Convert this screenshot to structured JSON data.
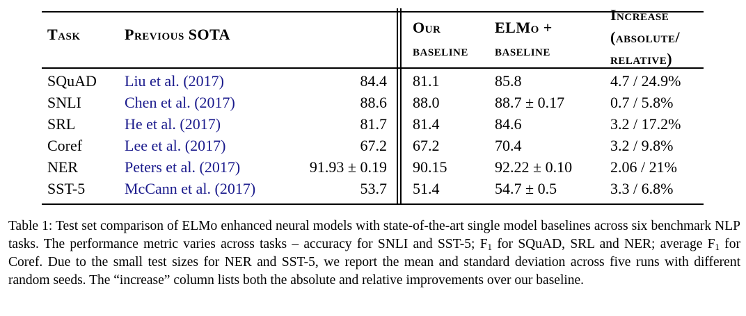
{
  "table": {
    "headers": {
      "task": "Task",
      "previous_sota": "Previous SOTA",
      "our_baseline": [
        "Our",
        "baseline"
      ],
      "elmo_baseline": [
        "ELMo +",
        "baseline"
      ],
      "increase": [
        "Increase",
        "(absolute/",
        "relative)"
      ]
    },
    "rows": [
      {
        "task": "SQuAD",
        "author": "Liu et al.",
        "year": "2017",
        "sota": "84.4",
        "baseline": "81.1",
        "elmo": "85.8",
        "increase": "4.7 / 24.9%"
      },
      {
        "task": "SNLI",
        "author": "Chen et al.",
        "year": "2017",
        "sota": "88.6",
        "baseline": "88.0",
        "elmo": "88.7 ± 0.17",
        "increase": "0.7 / 5.8%"
      },
      {
        "task": "SRL",
        "author": "He et al.",
        "year": "2017",
        "sota": "81.7",
        "baseline": "81.4",
        "elmo": "84.6",
        "increase": "3.2 / 17.2%"
      },
      {
        "task": "Coref",
        "author": "Lee et al.",
        "year": "2017",
        "sota": "67.2",
        "baseline": "67.2",
        "elmo": "70.4",
        "increase": "3.2 / 9.8%"
      },
      {
        "task": "NER",
        "author": "Peters et al.",
        "year": "2017",
        "sota": "91.93 ± 0.19",
        "baseline": "90.15",
        "elmo": "92.22 ± 0.10",
        "increase": "2.06 / 21%"
      },
      {
        "task": "SST-5",
        "author": "McCann et al.",
        "year": "2017",
        "sota": "53.7",
        "baseline": "51.4",
        "elmo": "54.7 ± 0.5",
        "increase": "3.3 / 6.8%"
      }
    ]
  },
  "caption": {
    "part1": "Table 1: Test set comparison of ELMo enhanced neural models with state-of-the-art single model baselines across six benchmark NLP tasks. The performance metric varies across tasks – accuracy for SNLI and SST-5; F",
    "sub1": "1",
    "part2": " for SQuAD, SRL and NER; average F",
    "sub2": "1",
    "part3": " for Coref. Due to the small test sizes for NER and SST-5, we report the mean and standard deviation across five runs with different random seeds. The “increase” column lists both the absolute and relative improvements over our baseline."
  }
}
